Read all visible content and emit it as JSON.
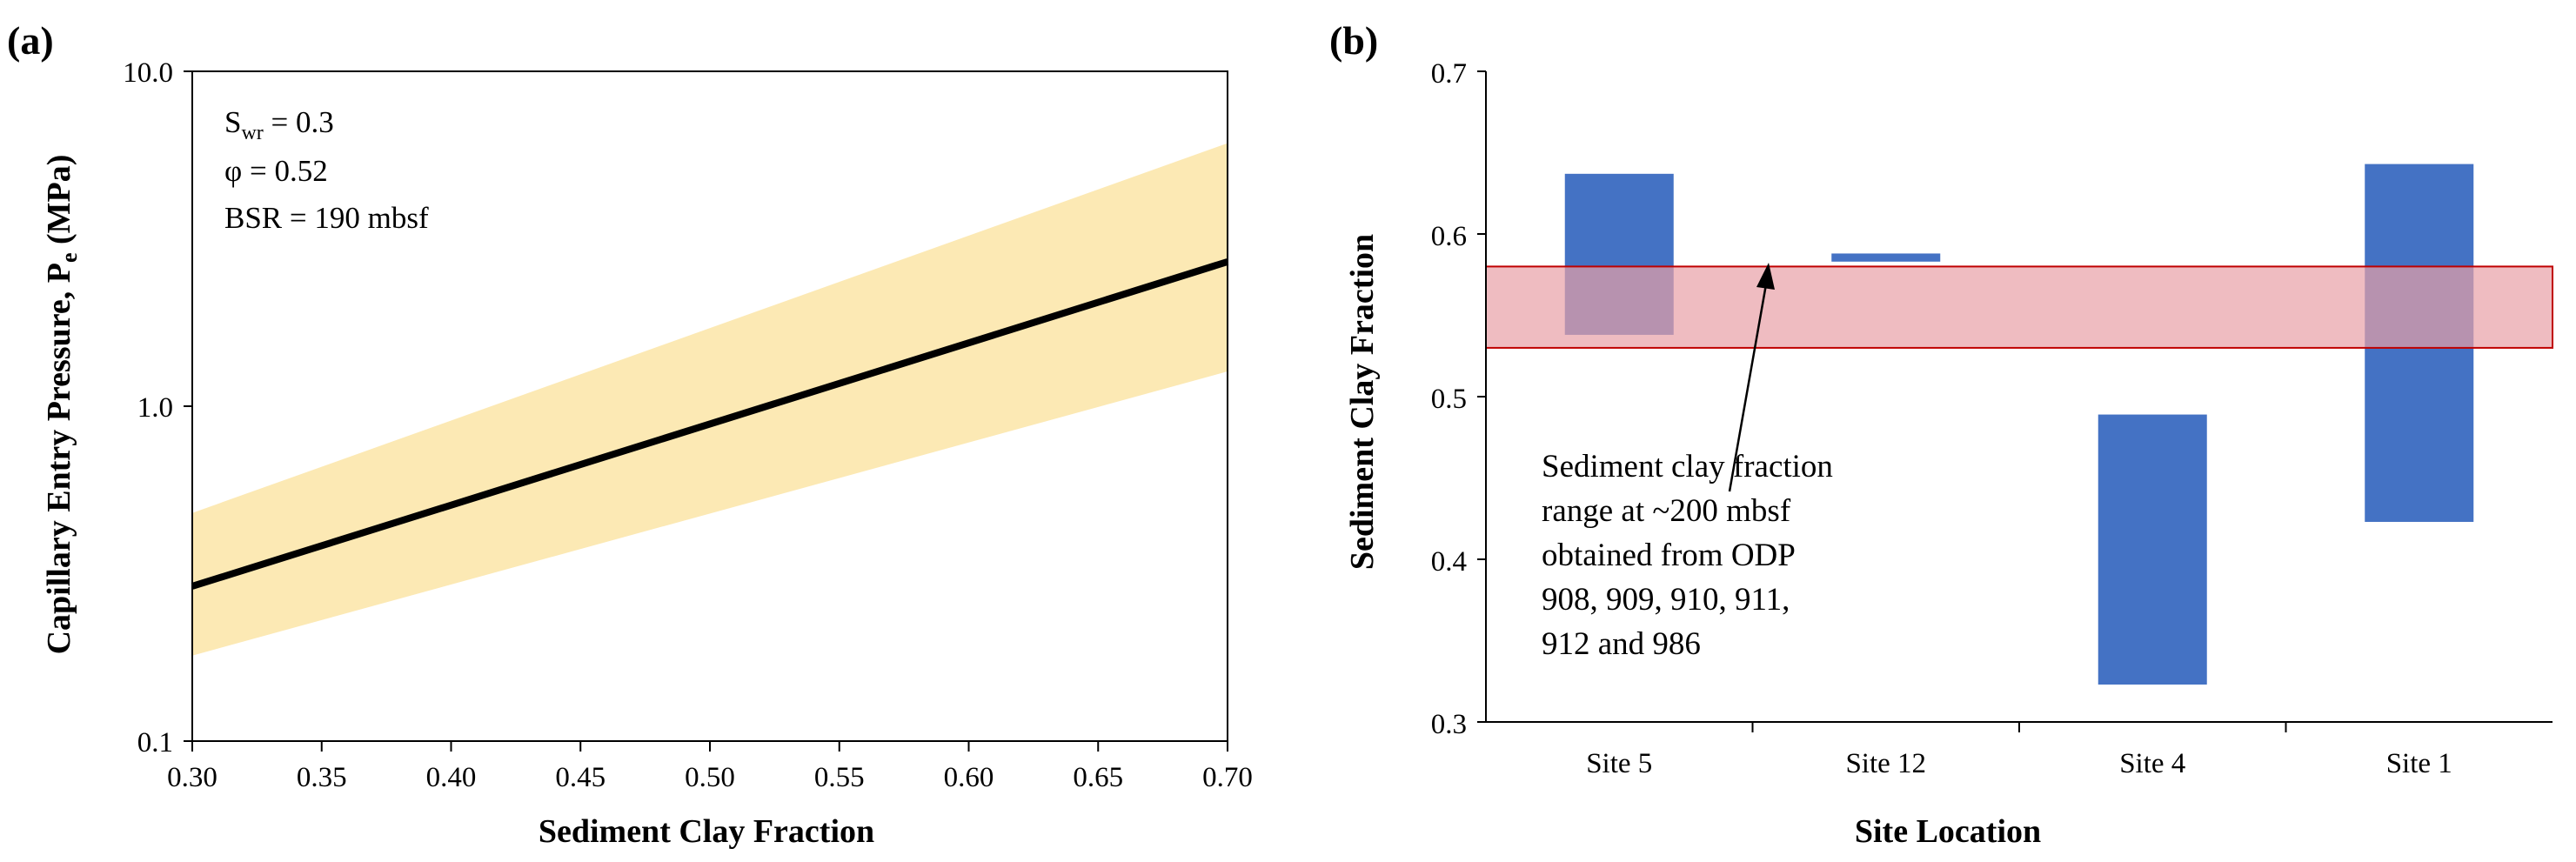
{
  "chart_data": [
    {
      "panel_label": "(a)",
      "type": "line",
      "x_scale": "linear",
      "y_scale": "log",
      "xlabel": "Sediment Clay Fraction",
      "ylabel_main": "Capillary Entry Pressure, P",
      "ylabel_sub": "e",
      "ylabel_unit": " (MPa)",
      "xlim": [
        0.3,
        0.7
      ],
      "ylim": [
        0.1,
        10.0
      ],
      "x_ticks": [
        0.3,
        0.35,
        0.4,
        0.45,
        0.5,
        0.55,
        0.6,
        0.65,
        0.7
      ],
      "x_tick_labels": [
        "0.30",
        "0.35",
        "0.40",
        "0.45",
        "0.50",
        "0.55",
        "0.60",
        "0.65",
        "0.70"
      ],
      "y_ticks": [
        0.1,
        1.0,
        10.0
      ],
      "y_tick_labels": [
        "0.1",
        "1.0",
        "10.0"
      ],
      "series": [
        {
          "name": "Capillary entry pressure",
          "x": [
            0.3,
            0.7
          ],
          "y": [
            0.29,
            2.7
          ],
          "color": "#000000"
        }
      ],
      "band": {
        "x": [
          0.3,
          0.7
        ],
        "lower": [
          0.18,
          1.27
        ],
        "upper": [
          0.48,
          6.1
        ],
        "color": "#FCE9B4"
      },
      "annotations": {
        "swr_main": "S",
        "swr_sub": "wr",
        "swr_rest": " = 0.3",
        "phi": "φ = 0.52",
        "bsr": "BSR = 190 mbsf"
      }
    },
    {
      "panel_label": "(b)",
      "type": "floating-bar",
      "xlabel": "Site Location",
      "ylabel": "Sediment Clay Fraction",
      "ylim": [
        0.3,
        0.7
      ],
      "y_ticks": [
        0.3,
        0.4,
        0.5,
        0.6,
        0.7
      ],
      "y_tick_labels": [
        "0.3",
        "0.4",
        "0.5",
        "0.6",
        "0.7"
      ],
      "categories": [
        "Site 5",
        "Site 12",
        "Site 4",
        "Site 1"
      ],
      "ranges": [
        {
          "low": 0.538,
          "high": 0.637
        },
        {
          "low": 0.583,
          "high": 0.588
        },
        {
          "low": 0.323,
          "high": 0.489
        },
        {
          "low": 0.423,
          "high": 0.643
        }
      ],
      "bar_color": "#4472C4",
      "highlight_band": {
        "low": 0.53,
        "high": 0.58,
        "fill": "#E8A0A6",
        "stroke": "#C00000"
      },
      "annotation_lines": [
        "Sediment clay fraction",
        "range at ~200 mbsf",
        "obtained from ODP",
        "908, 909, 910, 911,",
        "912 and 986"
      ]
    }
  ]
}
